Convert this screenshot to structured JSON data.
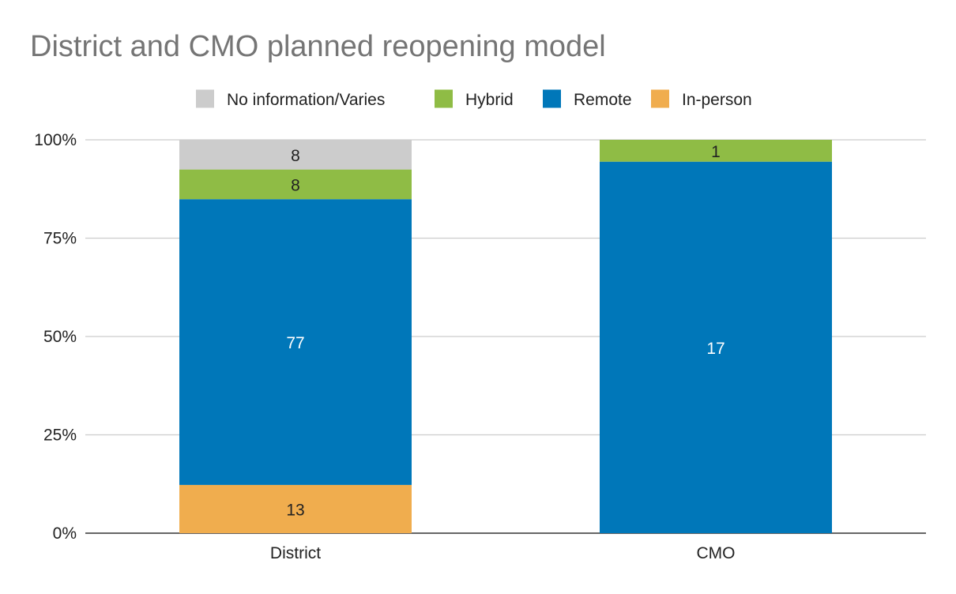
{
  "chart_data": {
    "type": "bar",
    "stacked": true,
    "percent_stacked": true,
    "title": "District and CMO planned reopening model",
    "xlabel": "",
    "ylabel": "",
    "categories": [
      "District",
      "CMO"
    ],
    "series": [
      {
        "name": "In-person",
        "color": "#f0ad4e",
        "values": [
          13,
          0
        ]
      },
      {
        "name": "Remote",
        "color": "#0077b9",
        "values": [
          77,
          17
        ]
      },
      {
        "name": "Hybrid",
        "color": "#8fbc45",
        "values": [
          8,
          1
        ]
      },
      {
        "name": "No information/Varies",
        "color": "#cccccc",
        "values": [
          8,
          0
        ]
      }
    ],
    "legend_order": [
      "No information/Varies",
      "Hybrid",
      "Remote",
      "In-person"
    ],
    "label_colors": {
      "In-person": "#222222",
      "Remote": "#ffffff",
      "Hybrid": "#222222",
      "No information/Varies": "#222222"
    },
    "y_ticks": [
      "0%",
      "25%",
      "50%",
      "75%",
      "100%"
    ],
    "ylim": [
      0,
      100
    ],
    "grid": true,
    "legend_position": "top"
  }
}
